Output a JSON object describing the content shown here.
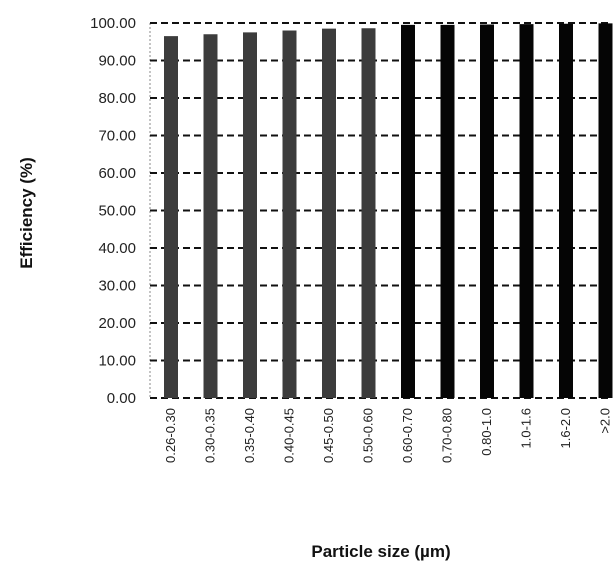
{
  "chart_data": {
    "type": "bar",
    "xlabel": "Particle size (µm)",
    "ylabel": "Efficiency  (%)",
    "ylim": [
      0,
      100
    ],
    "yticks": [
      "0.00",
      "10.00",
      "20.00",
      "30.00",
      "40.00",
      "50.00",
      "60.00",
      "70.00",
      "80.00",
      "90.00",
      "100.00"
    ],
    "grid": true,
    "categories": [
      "0.26-0.30",
      "0.30-0.35",
      "0.35-0.40",
      "0.40-0.45",
      "0.45-0.50",
      "0.50-0.60",
      "0.60-0.70",
      "0.70-0.80",
      "0.80-1.0",
      "1.0-1.6",
      "1.6-2.0",
      ">2.0"
    ],
    "values": [
      96.5,
      97.0,
      97.5,
      98.0,
      98.5,
      98.6,
      99.5,
      99.5,
      99.6,
      99.7,
      99.8,
      99.9
    ],
    "colors": [
      "#3c3c3c",
      "#3c3c3c",
      "#3c3c3c",
      "#3c3c3c",
      "#3c3c3c",
      "#3c3c3c",
      "#050505",
      "#050505",
      "#050505",
      "#050505",
      "#050505",
      "#050505"
    ]
  }
}
